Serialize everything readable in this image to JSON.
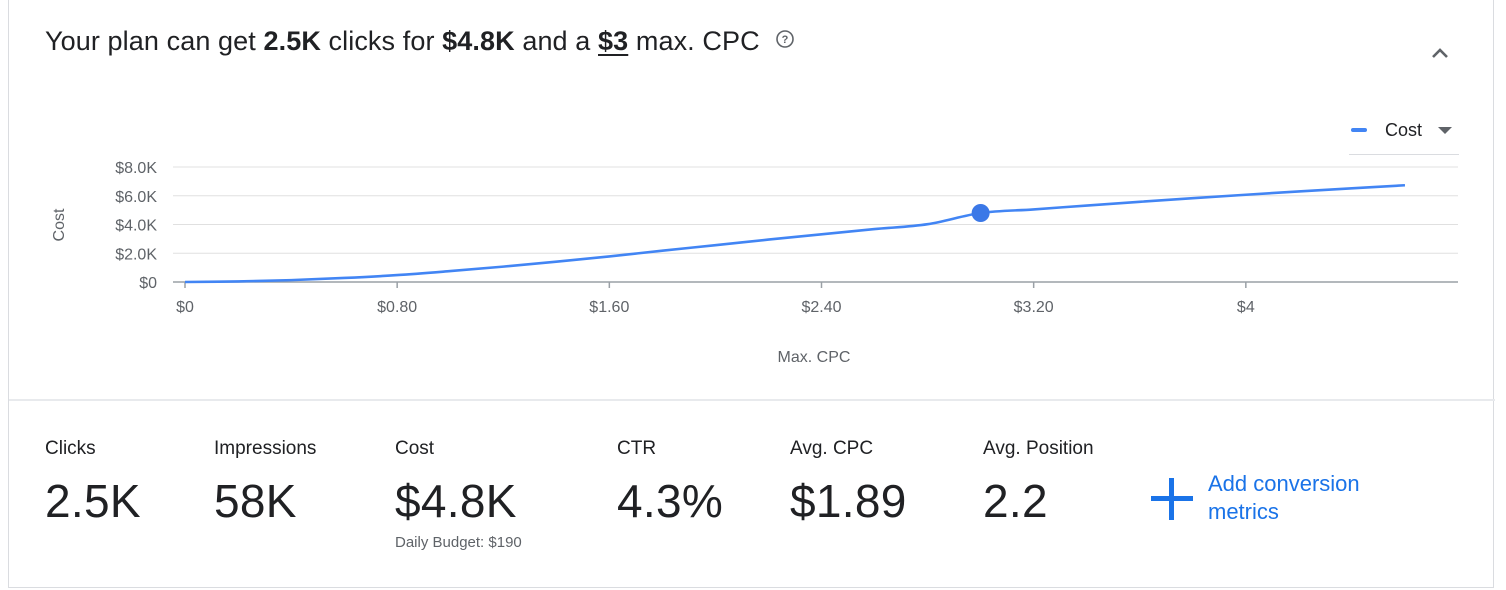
{
  "header": {
    "prefix": "Your plan can get",
    "clicks": "2.5K",
    "mid1": "clicks for",
    "cost": "$4.8K",
    "mid2": "and a",
    "max_cpc": "$3",
    "suffix": "max. CPC"
  },
  "legend": {
    "label": "Cost",
    "color": "#4285f4"
  },
  "chart_data": {
    "type": "line",
    "xlabel": "Max. CPC",
    "ylabel": "Cost",
    "xlim": [
      0,
      4.8
    ],
    "ylim": [
      0,
      8000
    ],
    "x_ticks": [
      0,
      0.8,
      1.6,
      2.4,
      3.2,
      4
    ],
    "x_tick_labels": [
      "$0",
      "$0.80",
      "$1.60",
      "$2.40",
      "$3.20",
      "$4"
    ],
    "y_ticks": [
      0,
      2000,
      4000,
      6000,
      8000
    ],
    "y_tick_labels": [
      "$0",
      "$2.0K",
      "$4.0K",
      "$6.0K",
      "$8.0K"
    ],
    "grid": true,
    "series": [
      {
        "name": "Cost",
        "x": [
          0,
          0.2,
          0.4,
          0.6,
          0.8,
          1.0,
          1.2,
          1.4,
          1.6,
          1.8,
          2.0,
          2.2,
          2.4,
          2.6,
          2.8,
          3.0,
          3.2,
          3.4,
          3.6,
          3.8,
          4.0,
          4.2,
          4.4,
          4.6
        ],
        "y": [
          0,
          40,
          130,
          280,
          480,
          760,
          1070,
          1410,
          1780,
          2180,
          2560,
          2950,
          3320,
          3680,
          4020,
          4800,
          5050,
          5320,
          5580,
          5830,
          6070,
          6300,
          6520,
          6730
        ]
      }
    ],
    "highlight_point": {
      "x": 3.0,
      "y": 4800
    },
    "colors": {
      "line": "#4285f4",
      "grid": "#e0e0e0",
      "axis": "#9aa0a6"
    }
  },
  "metrics": [
    {
      "label": "Clicks",
      "value": "2.5K",
      "sub": ""
    },
    {
      "label": "Impressions",
      "value": "58K",
      "sub": ""
    },
    {
      "label": "Cost",
      "value": "$4.8K",
      "sub": "Daily Budget: $190"
    },
    {
      "label": "CTR",
      "value": "4.3%",
      "sub": ""
    },
    {
      "label": "Avg. CPC",
      "value": "$1.89",
      "sub": ""
    },
    {
      "label": "Avg. Position",
      "value": "2.2",
      "sub": ""
    }
  ],
  "add_conversion": {
    "label": "Add conversion metrics",
    "color": "#1a73e8"
  }
}
